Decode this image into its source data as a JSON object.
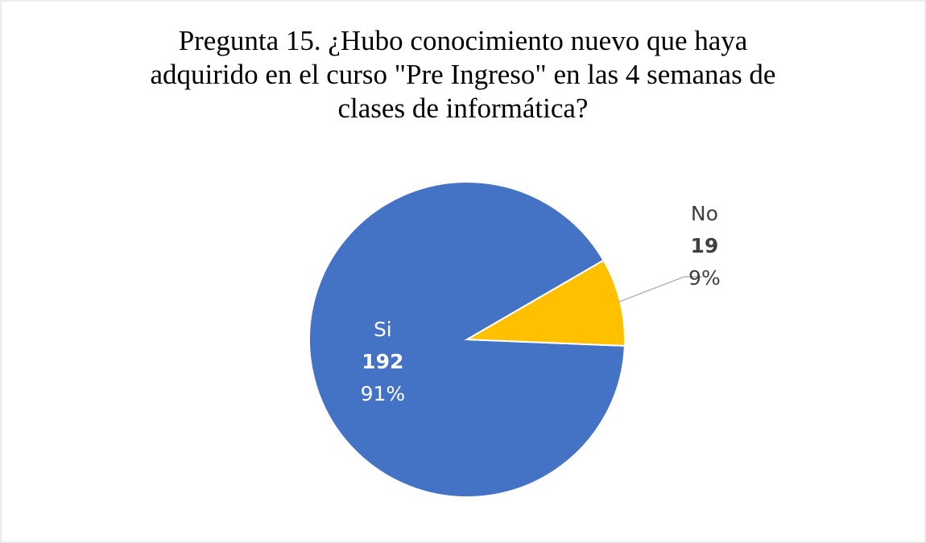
{
  "chart_data": {
    "type": "pie",
    "title": [
      "Pregunta 15. ¿Hubo conocimiento nuevo que haya",
      "adquirido en el curso \"Pre Ingreso\" en las 4 semanas de",
      "clases de informática?"
    ],
    "categories": [
      "Si",
      "No"
    ],
    "values": [
      192,
      19
    ],
    "percent_labels": [
      "91%",
      "9%"
    ],
    "colors": [
      "#4472c4",
      "#ffc000"
    ]
  }
}
